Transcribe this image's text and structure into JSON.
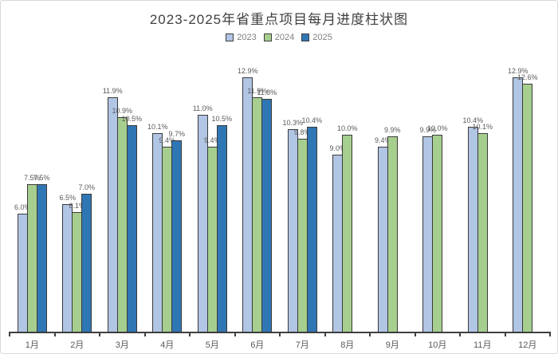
{
  "chart_data": {
    "type": "bar",
    "title": "2023-2025年省重点项目每月进度柱状图",
    "legend_position": "top",
    "grid": false,
    "y_axis_visible": false,
    "data_labels": true,
    "value_suffix": "%",
    "ylim": [
      0,
      14
    ],
    "categories": [
      "1月",
      "2月",
      "3月",
      "4月",
      "5月",
      "6月",
      "7月",
      "8月",
      "9月",
      "10月",
      "11月",
      "12月"
    ],
    "series": [
      {
        "name": "2023",
        "color": "#b1c5e4",
        "values": [
          6.0,
          6.5,
          11.9,
          10.1,
          11.0,
          12.9,
          10.3,
          9.0,
          9.4,
          9.9,
          10.4,
          12.9
        ]
      },
      {
        "name": "2024",
        "color": "#a6ce8e",
        "values": [
          7.5,
          6.1,
          10.9,
          9.4,
          9.4,
          11.9,
          9.8,
          10.0,
          9.9,
          10.0,
          10.1,
          12.6
        ]
      },
      {
        "name": "2025",
        "color": "#2f76b5",
        "values": [
          7.5,
          7.0,
          10.5,
          9.7,
          10.5,
          11.8,
          10.4,
          null,
          null,
          null,
          null,
          null
        ]
      }
    ],
    "axis_color": "#404040",
    "label_color": "#595959"
  }
}
